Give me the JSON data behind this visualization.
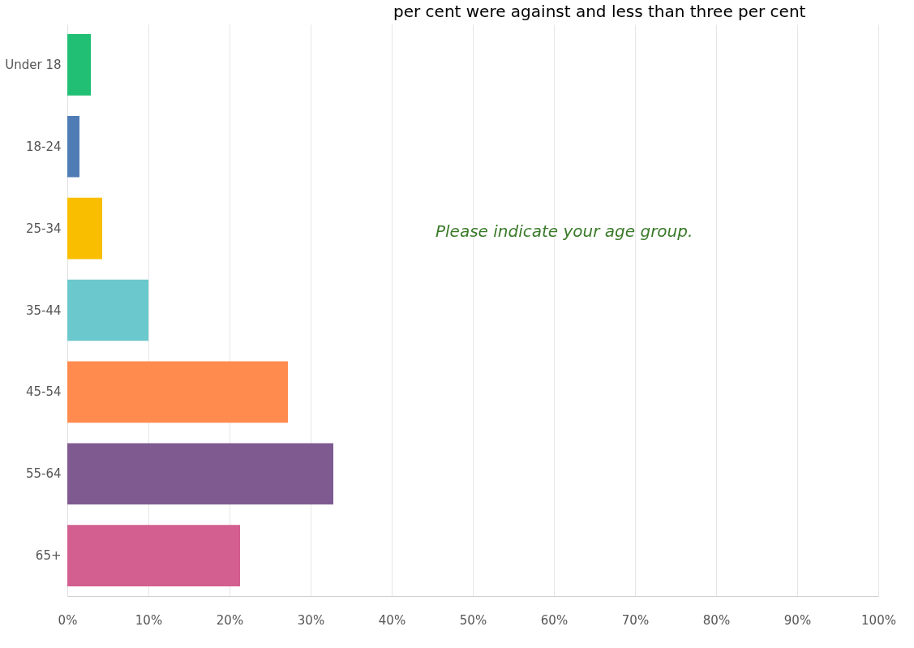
{
  "chart_data": {
    "type": "bar",
    "orientation": "horizontal",
    "categories": [
      "Under 18",
      "18-24",
      "25-34",
      "35-44",
      "45-54",
      "55-64",
      "65+"
    ],
    "values": [
      2.9,
      1.5,
      4.3,
      10.0,
      27.2,
      32.8,
      21.3
    ],
    "colors": [
      "#21bf73",
      "#507cb6",
      "#f9be00",
      "#6bc8cd",
      "#ff8b4f",
      "#7f5a91",
      "#d25f90"
    ],
    "xlim": [
      0,
      100
    ],
    "xticks": [
      {
        "value": 0,
        "label": "0%"
      },
      {
        "value": 10,
        "label": "10%"
      },
      {
        "value": 20,
        "label": "20%"
      },
      {
        "value": 30,
        "label": "30%"
      },
      {
        "value": 40,
        "label": "40%"
      },
      {
        "value": 50,
        "label": "50%"
      },
      {
        "value": 60,
        "label": "60%"
      },
      {
        "value": 70,
        "label": "70%"
      },
      {
        "value": 80,
        "label": "80%"
      },
      {
        "value": 90,
        "label": "90%"
      },
      {
        "value": 100,
        "label": "100%"
      }
    ],
    "grid": "x",
    "annotations": [
      "per cent were against and less than three per cent",
      "Please indicate your age group."
    ]
  }
}
